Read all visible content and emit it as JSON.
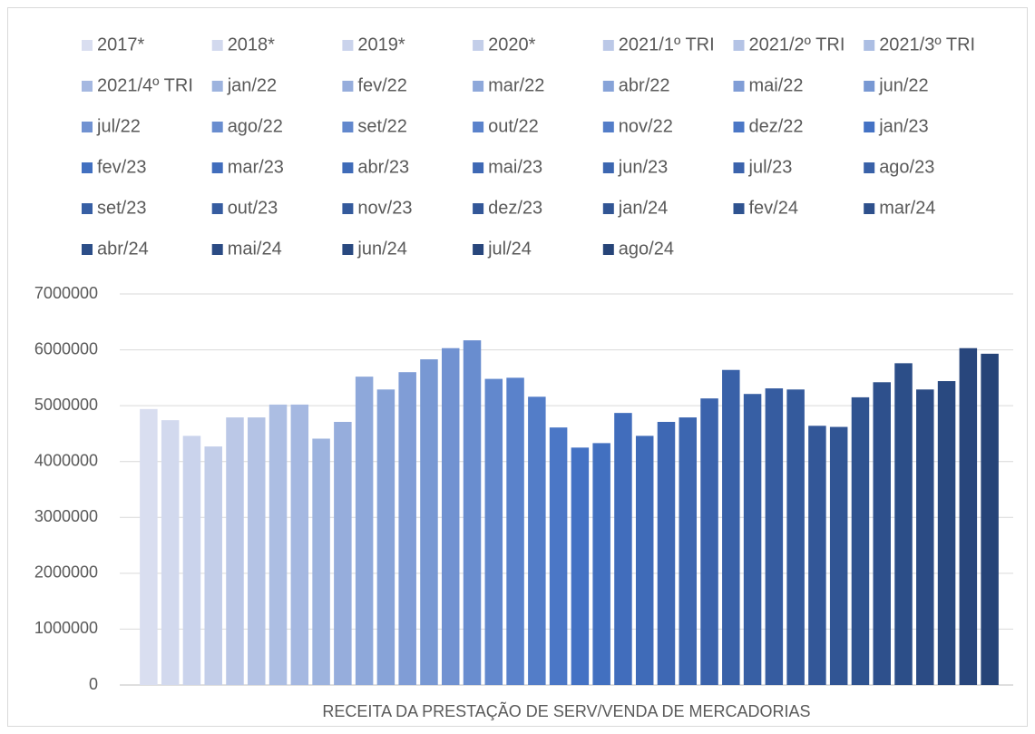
{
  "chart_data": {
    "type": "bar",
    "categories": [
      "RECEITA DA PRESTAÇÃO DE SERV/VENDA DE MERCADORIAS"
    ],
    "series": [
      {
        "name": "2017*",
        "color": "#d9def0",
        "values": [
          4940000
        ]
      },
      {
        "name": "2018*",
        "color": "#d2d9ee",
        "values": [
          4740000
        ]
      },
      {
        "name": "2019*",
        "color": "#cad3ec",
        "values": [
          4460000
        ]
      },
      {
        "name": "2020*",
        "color": "#c3cee9",
        "values": [
          4270000
        ]
      },
      {
        "name": "2021/1º TRI",
        "color": "#bbc8e7",
        "values": [
          4790000
        ]
      },
      {
        "name": "2021/2º TRI",
        "color": "#b4c3e5",
        "values": [
          4790000
        ]
      },
      {
        "name": "2021/3º TRI",
        "color": "#acbee3",
        "values": [
          5020000
        ]
      },
      {
        "name": "2021/4º TRI",
        "color": "#a5b8e1",
        "values": [
          5020000
        ]
      },
      {
        "name": "jan/22",
        "color": "#9db3de",
        "values": [
          4410000
        ]
      },
      {
        "name": "fev/22",
        "color": "#96addc",
        "values": [
          4710000
        ]
      },
      {
        "name": "mar/22",
        "color": "#8ea8da",
        "values": [
          5520000
        ]
      },
      {
        "name": "abr/22",
        "color": "#87a3d8",
        "values": [
          5290000
        ]
      },
      {
        "name": "mai/22",
        "color": "#809dd6",
        "values": [
          5600000
        ]
      },
      {
        "name": "jun/22",
        "color": "#7898d3",
        "values": [
          5830000
        ]
      },
      {
        "name": "jul/22",
        "color": "#7192d1",
        "values": [
          6030000
        ]
      },
      {
        "name": "ago/22",
        "color": "#698dcf",
        "values": [
          6170000
        ]
      },
      {
        "name": "set/22",
        "color": "#6288cd",
        "values": [
          5480000
        ]
      },
      {
        "name": "out/22",
        "color": "#5a82cb",
        "values": [
          5500000
        ]
      },
      {
        "name": "nov/22",
        "color": "#537dc8",
        "values": [
          5160000
        ]
      },
      {
        "name": "dez/22",
        "color": "#4b77c6",
        "values": [
          4610000
        ]
      },
      {
        "name": "jan/23",
        "color": "#4472c4",
        "values": [
          4250000
        ]
      },
      {
        "name": "fev/23",
        "color": "#4270c0",
        "values": [
          4330000
        ]
      },
      {
        "name": "mar/23",
        "color": "#416dbc",
        "values": [
          4870000
        ]
      },
      {
        "name": "abr/23",
        "color": "#3f6bb8",
        "values": [
          4460000
        ]
      },
      {
        "name": "mai/23",
        "color": "#3e68b4",
        "values": [
          4710000
        ]
      },
      {
        "name": "jun/23",
        "color": "#3c66b0",
        "values": [
          4790000
        ]
      },
      {
        "name": "jul/23",
        "color": "#3b63ac",
        "values": [
          5130000
        ]
      },
      {
        "name": "ago/23",
        "color": "#3961a8",
        "values": [
          5640000
        ]
      },
      {
        "name": "set/23",
        "color": "#375fa4",
        "values": [
          5210000
        ]
      },
      {
        "name": "out/23",
        "color": "#365ca0",
        "values": [
          5310000
        ]
      },
      {
        "name": "nov/23",
        "color": "#345a9c",
        "values": [
          5290000
        ]
      },
      {
        "name": "dez/23",
        "color": "#335798",
        "values": [
          4640000
        ]
      },
      {
        "name": "jan/24",
        "color": "#315594",
        "values": [
          4620000
        ]
      },
      {
        "name": "fev/24",
        "color": "#2f5390",
        "values": [
          5150000
        ]
      },
      {
        "name": "mar/24",
        "color": "#2e508c",
        "values": [
          5420000
        ]
      },
      {
        "name": "abr/24",
        "color": "#2c4e88",
        "values": [
          5760000
        ]
      },
      {
        "name": "mai/24",
        "color": "#2b4b84",
        "values": [
          5290000
        ]
      },
      {
        "name": "jun/24",
        "color": "#294980",
        "values": [
          5440000
        ]
      },
      {
        "name": "jul/24",
        "color": "#28467c",
        "values": [
          6030000
        ]
      },
      {
        "name": "ago/24",
        "color": "#264478",
        "values": [
          5930000
        ]
      }
    ],
    "ylim": [
      0,
      7000000
    ],
    "yticks": [
      0,
      1000000,
      2000000,
      3000000,
      4000000,
      5000000,
      6000000,
      7000000
    ],
    "grid": true,
    "legend": "top"
  }
}
